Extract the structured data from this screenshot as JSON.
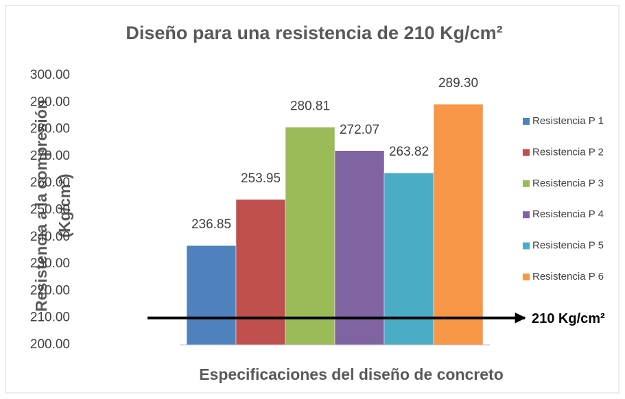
{
  "chart_data": {
    "type": "bar",
    "title": "Diseño para una resistencia de 210 Kg/cm²",
    "y_label": [
      "Resistencia a la compresión",
      "(Kg/cm²)"
    ],
    "x_label": "Especificaciones del diseño de concreto",
    "series": [
      {
        "name": "Resistencia P 1",
        "color": "#4f81bd",
        "values": [
          236.85
        ],
        "value_labels": [
          "236.85"
        ]
      },
      {
        "name": "Resistencia P 2",
        "color": "#c0504d",
        "values": [
          253.95
        ],
        "value_labels": [
          "253.95"
        ]
      },
      {
        "name": "Resistencia P 3",
        "color": "#9bbb59",
        "values": [
          280.81
        ],
        "value_labels": [
          "280.81"
        ]
      },
      {
        "name": "Resistencia P 4",
        "color": "#8064a2",
        "values": [
          272.07
        ],
        "value_labels": [
          "272.07"
        ]
      },
      {
        "name": "Resistencia P 5",
        "color": "#4bacc6",
        "values": [
          263.82
        ],
        "value_labels": [
          "263.82"
        ]
      },
      {
        "name": "Resistencia P 6",
        "color": "#f79646",
        "values": [
          289.3
        ],
        "value_labels": [
          "289.30"
        ]
      }
    ],
    "ylim": [
      200,
      300
    ],
    "yticks": [
      {
        "value": 200,
        "label": "200.00"
      },
      {
        "value": 210,
        "label": "210.00"
      },
      {
        "value": 220,
        "label": "220.00"
      },
      {
        "value": 230,
        "label": "230.00"
      },
      {
        "value": 240,
        "label": "240.00"
      },
      {
        "value": 250,
        "label": "250.00"
      },
      {
        "value": 260,
        "label": "260.00"
      },
      {
        "value": 270,
        "label": "270.00"
      },
      {
        "value": 280,
        "label": "280.00"
      },
      {
        "value": 290,
        "label": "290.00"
      },
      {
        "value": 300,
        "label": "300.00"
      }
    ],
    "annotations": [
      {
        "text": "210 Kg/cm²",
        "y": 210
      }
    ],
    "legend": "right",
    "grid": false
  }
}
